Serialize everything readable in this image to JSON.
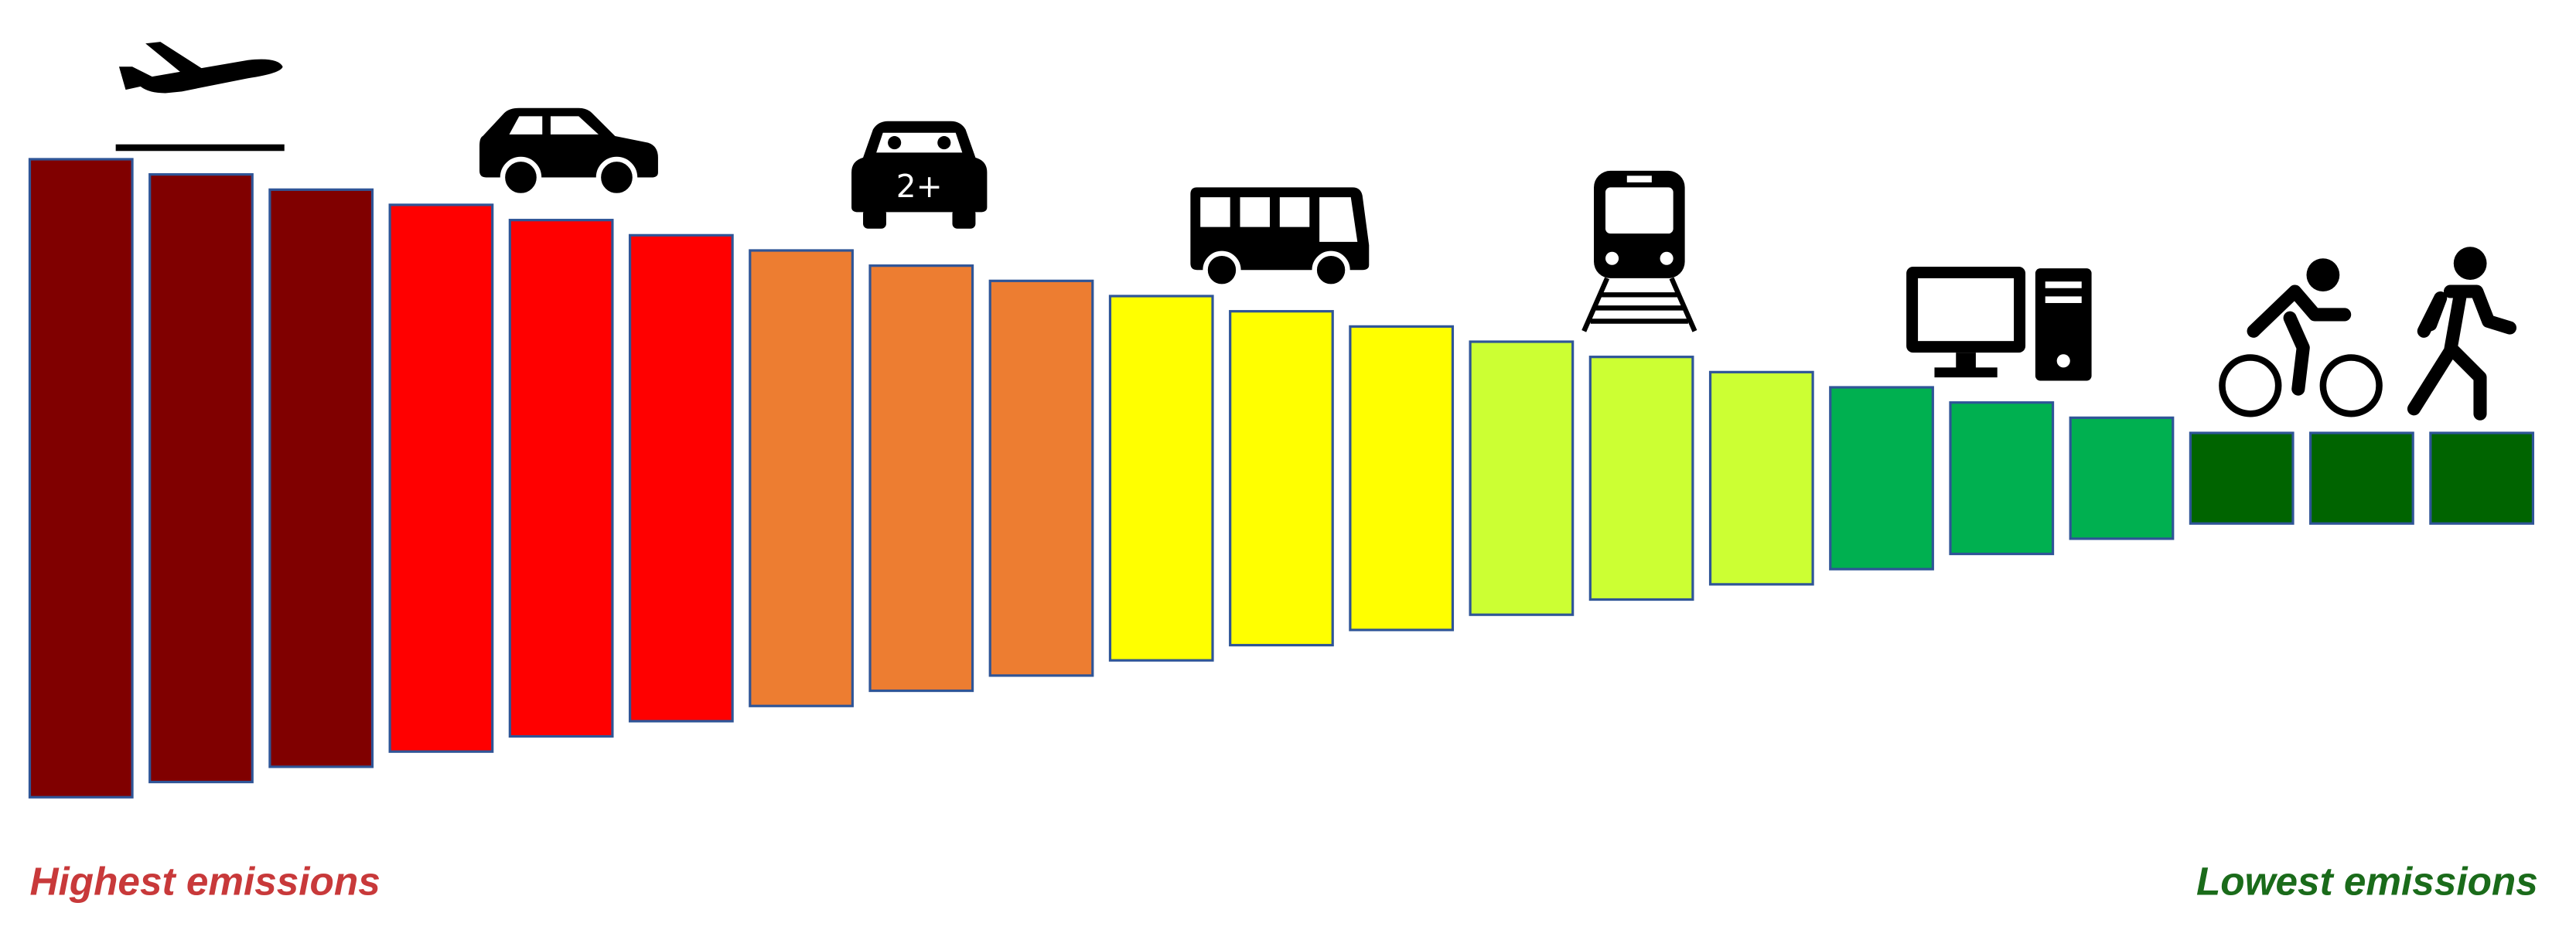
{
  "labels": {
    "highest": "Highest emissions",
    "lowest": "Lowest emissions"
  },
  "icons": {
    "carpool_badge": "2+"
  }
}
